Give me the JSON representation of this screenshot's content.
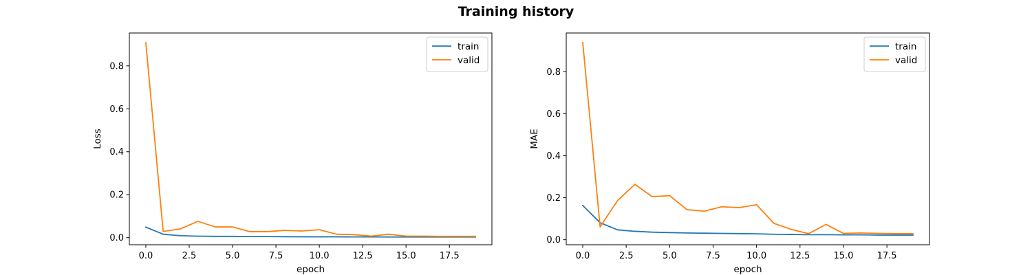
{
  "title": "Training history",
  "chart_data": [
    {
      "type": "line",
      "xlabel": "epoch",
      "ylabel": "Loss",
      "xlim": [
        -0.95,
        19.95
      ],
      "ylim": [
        -0.033,
        0.953
      ],
      "xticks": [
        0.0,
        2.5,
        5.0,
        7.5,
        10.0,
        12.5,
        15.0,
        17.5
      ],
      "xtick_labels": [
        "0.0",
        "2.5",
        "5.0",
        "7.5",
        "10.0",
        "12.5",
        "15.0",
        "17.5"
      ],
      "yticks": [
        0.0,
        0.2,
        0.4,
        0.6,
        0.8
      ],
      "ytick_labels": [
        "0.0",
        "0.2",
        "0.4",
        "0.6",
        "0.8"
      ],
      "legend_loc": "top-right",
      "grid": false,
      "x": [
        0,
        1,
        2,
        3,
        4,
        5,
        6,
        7,
        8,
        9,
        10,
        11,
        12,
        13,
        14,
        15,
        16,
        17,
        18,
        19
      ],
      "series": [
        {
          "name": "train",
          "color": "#1f77b4",
          "values": [
            0.049,
            0.016,
            0.009,
            0.007,
            0.006,
            0.006,
            0.005,
            0.005,
            0.0045,
            0.004,
            0.004,
            0.004,
            0.0035,
            0.0035,
            0.003,
            0.003,
            0.003,
            0.003,
            0.003,
            0.003
          ]
        },
        {
          "name": "valid",
          "color": "#ff7f0e",
          "values": [
            0.908,
            0.029,
            0.041,
            0.076,
            0.05,
            0.05,
            0.028,
            0.028,
            0.034,
            0.031,
            0.037,
            0.016,
            0.014,
            0.007,
            0.016,
            0.007,
            0.007,
            0.006,
            0.006,
            0.006
          ]
        }
      ]
    },
    {
      "type": "line",
      "xlabel": "epoch",
      "ylabel": "MAE",
      "xlim": [
        -0.95,
        19.95
      ],
      "ylim": [
        -0.024,
        0.985
      ],
      "xticks": [
        0.0,
        2.5,
        5.0,
        7.5,
        10.0,
        12.5,
        15.0,
        17.5
      ],
      "xtick_labels": [
        "0.0",
        "2.5",
        "5.0",
        "7.5",
        "10.0",
        "12.5",
        "15.0",
        "17.5"
      ],
      "yticks": [
        0.0,
        0.2,
        0.4,
        0.6,
        0.8
      ],
      "ytick_labels": [
        "0.0",
        "0.2",
        "0.4",
        "0.6",
        "0.8"
      ],
      "legend_loc": "top-right",
      "grid": false,
      "x": [
        0,
        1,
        2,
        3,
        4,
        5,
        6,
        7,
        8,
        9,
        10,
        11,
        12,
        13,
        14,
        15,
        16,
        17,
        18,
        19
      ],
      "series": [
        {
          "name": "train",
          "color": "#1f77b4",
          "values": [
            0.163,
            0.081,
            0.047,
            0.04,
            0.036,
            0.034,
            0.032,
            0.031,
            0.03,
            0.029,
            0.028,
            0.026,
            0.025,
            0.024,
            0.024,
            0.023,
            0.023,
            0.022,
            0.022,
            0.022
          ]
        },
        {
          "name": "valid",
          "color": "#ff7f0e",
          "values": [
            0.94,
            0.061,
            0.186,
            0.264,
            0.205,
            0.21,
            0.143,
            0.136,
            0.157,
            0.153,
            0.167,
            0.078,
            0.049,
            0.029,
            0.073,
            0.03,
            0.032,
            0.03,
            0.029,
            0.029
          ]
        }
      ]
    }
  ]
}
